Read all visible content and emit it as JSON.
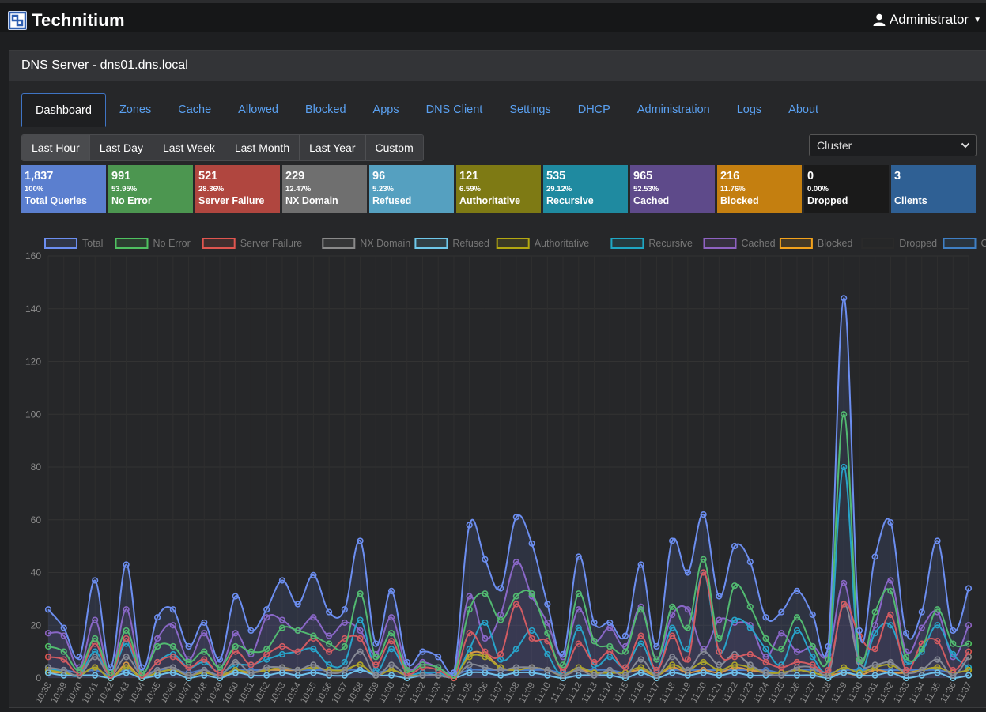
{
  "navbar": {
    "brand": "Technitium",
    "user": "Administrator"
  },
  "panel": {
    "title": "DNS Server - dns01.dns.local"
  },
  "tabs": [
    "Dashboard",
    "Zones",
    "Cache",
    "Allowed",
    "Blocked",
    "Apps",
    "DNS Client",
    "Settings",
    "DHCP",
    "Administration",
    "Logs",
    "About"
  ],
  "active_tab": "Dashboard",
  "range_buttons": [
    "Last Hour",
    "Last Day",
    "Last Week",
    "Last Month",
    "Last Year",
    "Custom"
  ],
  "active_range": "Last Hour",
  "cluster_select": {
    "value": "Cluster"
  },
  "stats": [
    {
      "value": "1,837",
      "percent": "100%",
      "label": "Total Queries",
      "color": "#5b7fcf"
    },
    {
      "value": "991",
      "percent": "53.95%",
      "label": "No Error",
      "color": "#4c9650"
    },
    {
      "value": "521",
      "percent": "28.36%",
      "label": "Server Failure",
      "color": "#b0463f"
    },
    {
      "value": "229",
      "percent": "12.47%",
      "label": "NX Domain",
      "color": "#6f6f6f"
    },
    {
      "value": "96",
      "percent": "5.23%",
      "label": "Refused",
      "color": "#55a0c0"
    },
    {
      "value": "121",
      "percent": "6.59%",
      "label": "Authoritative",
      "color": "#7e7a14"
    },
    {
      "value": "535",
      "percent": "29.12%",
      "label": "Recursive",
      "color": "#1f8aa0"
    },
    {
      "value": "965",
      "percent": "52.53%",
      "label": "Cached",
      "color": "#5e4a8a"
    },
    {
      "value": "216",
      "percent": "11.76%",
      "label": "Blocked",
      "color": "#c47f10"
    },
    {
      "value": "0",
      "percent": "0.00%",
      "label": "Dropped",
      "color": "#1a1a1a"
    },
    {
      "value": "3",
      "percent": "",
      "label": "Clients",
      "color": "#2f6094"
    }
  ],
  "chart_data": {
    "type": "line",
    "ylim": [
      0,
      160
    ],
    "yticks": [
      0,
      20,
      40,
      60,
      80,
      100,
      120,
      140,
      160
    ],
    "grid": true,
    "legend_position": "top",
    "x": [
      "10:38",
      "10:39",
      "10:40",
      "10:41",
      "10:42",
      "10:43",
      "10:44",
      "10:45",
      "10:46",
      "10:47",
      "10:48",
      "10:49",
      "10:50",
      "10:51",
      "10:52",
      "10:53",
      "10:54",
      "10:55",
      "10:56",
      "10:57",
      "10:58",
      "10:59",
      "11:00",
      "11:01",
      "11:02",
      "11:03",
      "11:04",
      "11:05",
      "11:06",
      "11:07",
      "11:08",
      "11:09",
      "11:10",
      "11:11",
      "11:12",
      "11:13",
      "11:14",
      "11:15",
      "11:16",
      "11:17",
      "11:18",
      "11:19",
      "11:20",
      "11:21",
      "11:22",
      "11:23",
      "11:24",
      "11:25",
      "11:26",
      "11:27",
      "11:28",
      "11:29",
      "11:30",
      "11:31",
      "11:32",
      "11:33",
      "11:34",
      "11:35",
      "11:36",
      "11:37"
    ],
    "series": [
      {
        "name": "Total",
        "color": "#6c8ef0",
        "fill": true,
        "values": [
          26,
          19,
          8,
          37,
          4,
          43,
          4,
          23,
          26,
          12,
          21,
          7,
          31,
          18,
          26,
          37,
          28,
          39,
          25,
          26,
          52,
          13,
          33,
          6,
          10,
          8,
          2,
          58,
          45,
          34,
          61,
          51,
          28,
          9,
          46,
          21,
          21,
          16,
          43,
          12,
          52,
          40,
          62,
          31,
          50,
          44,
          23,
          25,
          33,
          24,
          12,
          144,
          18,
          46,
          59,
          17,
          25,
          52,
          18,
          34
        ]
      },
      {
        "name": "No Error",
        "color": "#4fc160",
        "fill": false,
        "values": [
          12,
          10,
          3,
          15,
          2,
          18,
          2,
          12,
          12,
          6,
          10,
          4,
          12,
          10,
          11,
          19,
          18,
          16,
          13,
          12,
          32,
          8,
          17,
          3,
          5,
          4,
          1,
          26,
          32,
          22,
          31,
          32,
          17,
          5,
          32,
          14,
          12,
          10,
          26,
          7,
          27,
          19,
          45,
          15,
          35,
          27,
          15,
          11,
          23,
          12,
          7,
          100,
          7,
          25,
          33,
          8,
          11,
          26,
          13,
          13
        ]
      },
      {
        "name": "Server Failure",
        "color": "#e0554f",
        "fill": false,
        "values": [
          8,
          7,
          2,
          13,
          1,
          15,
          1,
          6,
          8,
          4,
          7,
          2,
          10,
          5,
          9,
          12,
          10,
          15,
          10,
          15,
          15,
          5,
          14,
          2,
          4,
          3,
          0,
          17,
          10,
          9,
          28,
          15,
          14,
          3,
          13,
          6,
          10,
          4,
          16,
          3,
          16,
          7,
          40,
          10,
          8,
          9,
          6,
          4,
          6,
          5,
          3,
          28,
          16,
          11,
          24,
          3,
          13,
          14,
          3,
          10
        ]
      },
      {
        "name": "NX Domain",
        "color": "#8a8a8a",
        "fill": false,
        "values": [
          4,
          3,
          1,
          8,
          1,
          8,
          1,
          3,
          4,
          1,
          3,
          1,
          6,
          2,
          4,
          4,
          3,
          5,
          2,
          3,
          10,
          1,
          5,
          1,
          1,
          1,
          0,
          5,
          4,
          3,
          4,
          4,
          3,
          1,
          3,
          1,
          3,
          1,
          7,
          1,
          8,
          3,
          10,
          5,
          9,
          5,
          2,
          1,
          4,
          4,
          1,
          28,
          6,
          5,
          6,
          2,
          3,
          7,
          1,
          8
        ]
      },
      {
        "name": "Refused",
        "color": "#6fc8ea",
        "fill": false,
        "values": [
          2,
          1,
          1,
          1,
          0,
          2,
          0,
          1,
          2,
          0,
          1,
          0,
          2,
          1,
          1,
          2,
          1,
          2,
          1,
          1,
          3,
          1,
          1,
          0,
          1,
          1,
          0,
          2,
          2,
          1,
          2,
          2,
          1,
          0,
          1,
          1,
          1,
          0,
          2,
          0,
          2,
          1,
          2,
          1,
          2,
          1,
          1,
          1,
          1,
          1,
          0,
          2,
          1,
          1,
          2,
          0,
          1,
          2,
          0,
          1
        ]
      },
      {
        "name": "Authoritative",
        "color": "#b3a811",
        "fill": false,
        "values": [
          3,
          2,
          1,
          4,
          0,
          4,
          0,
          2,
          3,
          1,
          2,
          1,
          3,
          2,
          3,
          4,
          3,
          4,
          3,
          3,
          5,
          1,
          3,
          1,
          1,
          1,
          0,
          8,
          8,
          4,
          3,
          4,
          3,
          1,
          4,
          2,
          2,
          2,
          4,
          1,
          5,
          3,
          6,
          3,
          5,
          4,
          2,
          2,
          3,
          2,
          1,
          4,
          2,
          4,
          5,
          2,
          3,
          4,
          2,
          3
        ]
      },
      {
        "name": "Recursive",
        "color": "#1fa7c4",
        "fill": false,
        "values": [
          4,
          2,
          1,
          10,
          1,
          13,
          1,
          6,
          9,
          4,
          6,
          2,
          5,
          5,
          7,
          9,
          10,
          11,
          5,
          6,
          22,
          3,
          11,
          2,
          2,
          2,
          0,
          11,
          21,
          7,
          11,
          18,
          9,
          2,
          19,
          5,
          8,
          4,
          13,
          3,
          19,
          11,
          40,
          10,
          22,
          19,
          11,
          5,
          18,
          8,
          3,
          80,
          3,
          17,
          20,
          6,
          10,
          20,
          9,
          4
        ]
      },
      {
        "name": "Cached",
        "color": "#8e62c2",
        "fill": true,
        "values": [
          17,
          16,
          4,
          22,
          1,
          26,
          2,
          15,
          20,
          7,
          17,
          4,
          17,
          9,
          23,
          22,
          18,
          23,
          16,
          21,
          18,
          9,
          23,
          4,
          6,
          4,
          2,
          31,
          15,
          24,
          44,
          31,
          21,
          8,
          26,
          14,
          19,
          12,
          27,
          7,
          24,
          26,
          11,
          22,
          21,
          20,
          8,
          17,
          10,
          12,
          9,
          36,
          7,
          20,
          37,
          10,
          19,
          25,
          8,
          20
        ]
      },
      {
        "name": "Blocked",
        "color": "#f2a21c",
        "fill": false,
        "values": [
          2,
          2,
          1,
          4,
          0,
          5,
          0,
          2,
          3,
          1,
          2,
          1,
          2,
          2,
          3,
          3,
          3,
          4,
          3,
          3,
          5,
          1,
          3,
          1,
          1,
          1,
          0,
          9,
          9,
          4,
          3,
          4,
          3,
          1,
          3,
          2,
          2,
          2,
          3,
          1,
          4,
          2,
          3,
          2,
          4,
          3,
          2,
          2,
          3,
          2,
          1,
          2,
          1,
          3,
          2,
          2,
          3,
          4,
          2,
          3
        ]
      },
      {
        "name": "Dropped",
        "color": "#2a2a2a",
        "fill": false,
        "values": [
          0,
          0,
          0,
          0,
          0,
          0,
          0,
          0,
          0,
          0,
          0,
          0,
          0,
          0,
          0,
          0,
          0,
          0,
          0,
          0,
          0,
          0,
          0,
          0,
          0,
          0,
          0,
          0,
          0,
          0,
          0,
          0,
          0,
          0,
          0,
          0,
          0,
          0,
          0,
          0,
          0,
          0,
          0,
          0,
          0,
          0,
          0,
          0,
          0,
          0,
          0,
          0,
          0,
          0,
          0,
          0,
          0,
          0,
          0,
          0
        ]
      },
      {
        "name": "Clients",
        "color": "#3f7fc4",
        "fill": false,
        "values": [
          3,
          3,
          2,
          3,
          1,
          3,
          1,
          3,
          3,
          2,
          3,
          1,
          3,
          3,
          3,
          3,
          3,
          3,
          3,
          3,
          3,
          2,
          3,
          1,
          2,
          1,
          1,
          3,
          3,
          3,
          3,
          3,
          3,
          2,
          3,
          3,
          3,
          2,
          3,
          2,
          3,
          3,
          3,
          3,
          3,
          3,
          3,
          2,
          3,
          3,
          2,
          3,
          3,
          3,
          3,
          3,
          3,
          3,
          2,
          3
        ]
      }
    ]
  }
}
